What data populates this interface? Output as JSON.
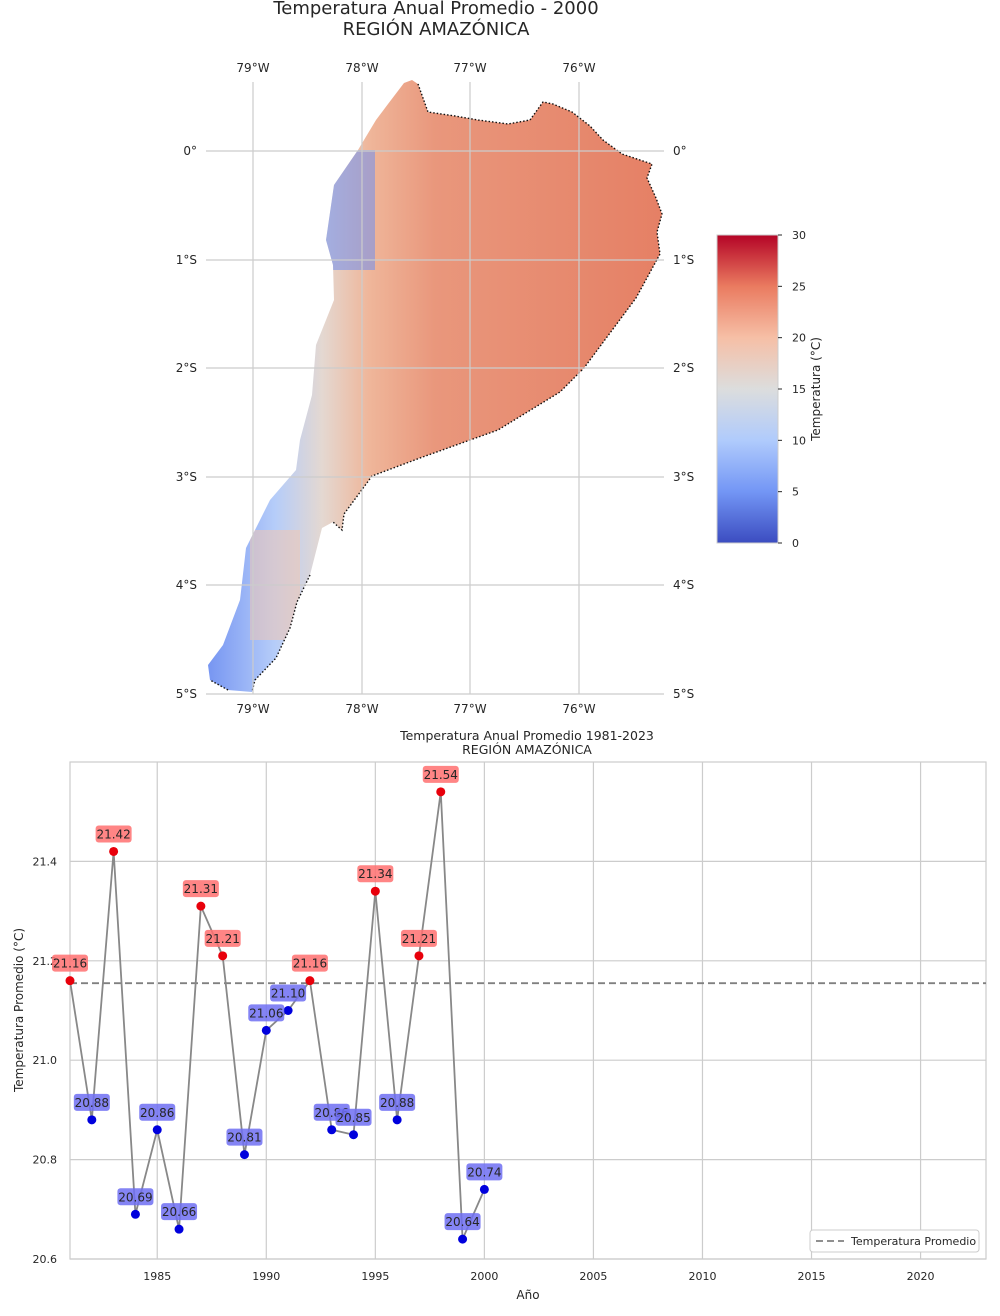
{
  "map": {
    "title_line1": "Temperatura Anual Promedio - 2000",
    "title_line2": "REGIÓN AMAZÓNICA",
    "lon_labels": [
      "79°W",
      "78°W",
      "77°W",
      "76°W"
    ],
    "lat_labels": [
      "0°",
      "1°S",
      "2°S",
      "3°S",
      "4°S",
      "5°S"
    ],
    "colorbar": {
      "label": "Temperatura (°C)",
      "ticks": [
        "0",
        "5",
        "10",
        "15",
        "20",
        "25",
        "30"
      ],
      "min": 0,
      "max": 30,
      "colormap": "coolwarm",
      "colors": [
        "#3b4cc0",
        "#7396f5",
        "#b0cbfc",
        "#dcdddd",
        "#f6bfa6",
        "#ea7b60",
        "#b40426"
      ]
    }
  },
  "chart_data": {
    "type": "line",
    "title": "Temperatura Anual Promedio 1981-2023",
    "subtitle": "REGIÓN AMAZÓNICA",
    "xlabel": "Año",
    "ylabel": "Temperatura Promedio (°C)",
    "xlim": [
      1981,
      2023
    ],
    "ylim": [
      20.6,
      21.6
    ],
    "x_ticks": [
      1985,
      1990,
      1995,
      2000,
      2005,
      2010,
      2015,
      2020
    ],
    "y_ticks": [
      "20.6",
      "20.8",
      "21.0",
      "21.2",
      "21.4"
    ],
    "grid": true,
    "legend_position": "lower right",
    "mean": 21.155,
    "mean_label": "Temperatura Promedio",
    "above_color": "#e8000b",
    "below_color": "#0000dd",
    "points": [
      {
        "x": 1981,
        "y": 21.16,
        "label": "21.16"
      },
      {
        "x": 1982,
        "y": 20.88,
        "label": "20.88"
      },
      {
        "x": 1983,
        "y": 21.42,
        "label": "21.42"
      },
      {
        "x": 1984,
        "y": 20.69,
        "label": "20.69"
      },
      {
        "x": 1985,
        "y": 20.86,
        "label": "20.86"
      },
      {
        "x": 1986,
        "y": 20.66,
        "label": "20.66"
      },
      {
        "x": 1987,
        "y": 21.31,
        "label": "21.31"
      },
      {
        "x": 1988,
        "y": 21.21,
        "label": "21.21"
      },
      {
        "x": 1989,
        "y": 20.81,
        "label": "20.81"
      },
      {
        "x": 1990,
        "y": 21.06,
        "label": "21.06"
      },
      {
        "x": 1991,
        "y": 21.1,
        "label": "21.10"
      },
      {
        "x": 1992,
        "y": 21.16,
        "label": "21.16"
      },
      {
        "x": 1993,
        "y": 20.86,
        "label": "20.86"
      },
      {
        "x": 1994,
        "y": 20.85,
        "label": "20.85"
      },
      {
        "x": 1995,
        "y": 21.34,
        "label": "21.34"
      },
      {
        "x": 1996,
        "y": 20.88,
        "label": "20.88"
      },
      {
        "x": 1997,
        "y": 21.21,
        "label": "21.21"
      },
      {
        "x": 1998,
        "y": 21.54,
        "label": "21.54"
      },
      {
        "x": 1999,
        "y": 20.64,
        "label": "20.64"
      },
      {
        "x": 2000,
        "y": 20.74,
        "label": "20.74"
      }
    ]
  }
}
